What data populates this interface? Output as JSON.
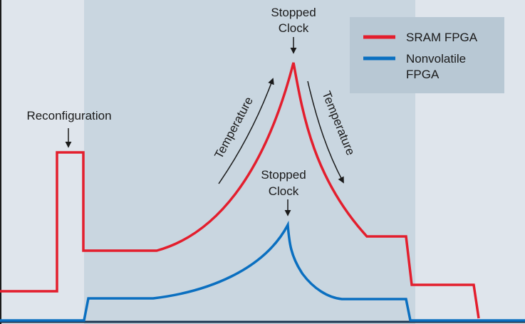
{
  "annotations": {
    "reconfiguration": "Reconfiguration",
    "stopped_clock_sram": [
      "Stopped",
      "Clock"
    ],
    "stopped_clock_nonvolatile": [
      "Stopped",
      "Clock"
    ],
    "temperature_rise": "Temperature",
    "temperature_fall": "Temperature"
  },
  "legend": {
    "items": [
      {
        "name": "SRAM FPGA"
      },
      {
        "name": [
          "Nonvolatile",
          "FPGA"
        ]
      }
    ]
  }
}
